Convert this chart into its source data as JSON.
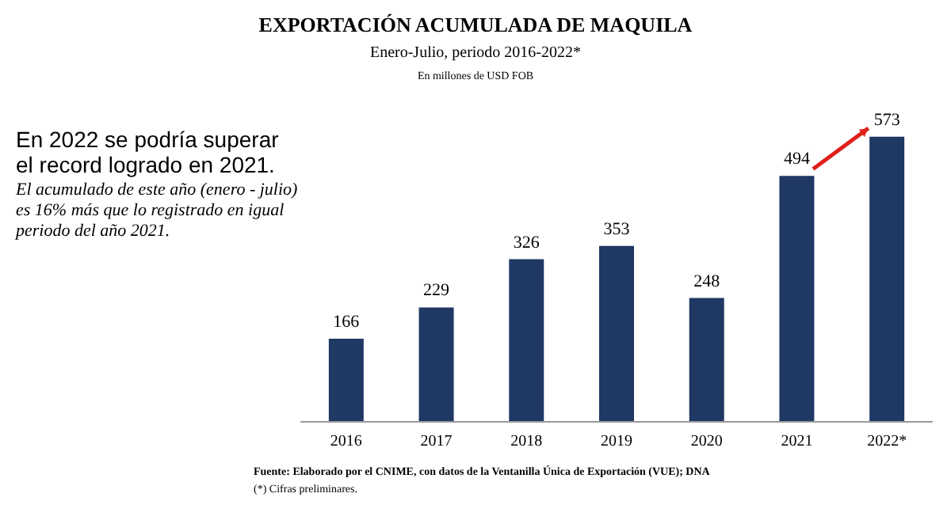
{
  "chart_data": {
    "type": "bar",
    "title": "EXPORTACIÓN ACUMULADA DE MAQUILA",
    "subtitle": "Enero-Julio, periodo 2016-2022*",
    "categories": [
      "2016",
      "2017",
      "2018",
      "2019",
      "2020",
      "2021",
      "2022*"
    ],
    "values": [
      166,
      229,
      326,
      353,
      248,
      494,
      573
    ],
    "color": "#1f3864",
    "data_labels": true,
    "annotations": [
      "En millones de USD FOB",
      "En 2022 se podría superar el record logrado en 2021.",
      "El acumulado de este año (enero - julio) es 16% más que lo registrado en igual periodo del año 2021.",
      "Fuente: Elaborado por el CNIME, con datos de la Ventanilla Única de Exportación (VUE); DNA",
      "(*) Cifras preliminares."
    ]
  }
}
